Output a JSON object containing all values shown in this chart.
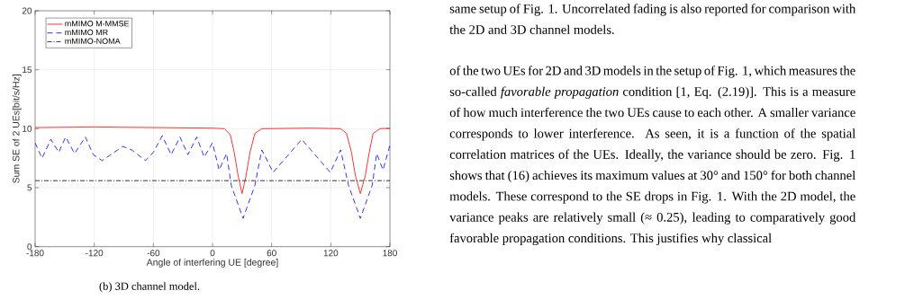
{
  "chart_data": {
    "type": "line",
    "xlabel": "Angle of interfering UE [degree]",
    "ylabel": "Sum SE of 2 UEs[bit/s/Hz]",
    "xlim": [
      -180,
      180
    ],
    "ylim": [
      0,
      20
    ],
    "xticks": [
      -180,
      -120,
      -60,
      0,
      60,
      120,
      180
    ],
    "yticks": [
      0,
      5,
      10,
      15,
      20
    ],
    "grid": true,
    "legend": "top left",
    "series": [
      {
        "name": "mMIMO M-MMSE",
        "color": "#ff0000",
        "line_style": "solid",
        "x": [
          -180,
          -120,
          0,
          12,
          18,
          22,
          26,
          30,
          34,
          38,
          43,
          50,
          100,
          130,
          136,
          141,
          145,
          150,
          155,
          159,
          163,
          170,
          180
        ],
        "values": [
          10.1,
          10.15,
          10.05,
          10.0,
          9.5,
          8,
          6,
          4.5,
          6,
          8,
          9.6,
          10.0,
          10.05,
          10.0,
          9.6,
          8,
          6,
          4.5,
          6,
          8,
          9.6,
          10.0,
          10.05
        ]
      },
      {
        "name": "mMIMO MR",
        "color": "#0000ff",
        "line_style": "dashed",
        "x": [
          -180,
          -173,
          -164,
          -156,
          -149,
          -140,
          -129,
          -121,
          -112,
          -91,
          -82,
          -68,
          -60,
          -51,
          -42,
          -33,
          -25,
          -16,
          -8.5,
          0,
          6.7,
          14.3,
          19,
          31,
          43,
          50,
          61.5,
          90.5,
          119.5,
          130,
          138,
          150,
          162,
          166.6,
          173,
          180
        ],
        "values": [
          8.8,
          7.5,
          9.1,
          8.0,
          9.3,
          7.9,
          9.3,
          7.8,
          7.3,
          8.5,
          8.2,
          7.3,
          8.0,
          9.4,
          7.8,
          9.3,
          7.8,
          9.3,
          7.6,
          8.8,
          6.5,
          7.9,
          5.2,
          2.4,
          5.2,
          8.2,
          6.3,
          9.1,
          6.3,
          8.2,
          5.2,
          2.4,
          5.2,
          7.9,
          6.5,
          8.6
        ]
      },
      {
        "name": "mMIMO-NOMA",
        "color": "#000000",
        "line_style": "dashdot",
        "x": [
          -180,
          180
        ],
        "values": [
          5.6,
          5.6
        ]
      }
    ],
    "annotations": [
      "(b) 3D channel model.",
      "same setup of Fig. 1. Uncorrelated fading is also reported for comparison with the 2D and 3D channel models.",
      "of the two UEs for 2D and 3D models in the setup of Fig. 1, which measures the so-called *favorable propagation* condition [1, Eq. (2.19)]. This is a measure of how much interference the two UEs cause to each other. A smaller variance corresponds to lower interference. As seen, it is a function of the spatial correlation matrices of the UEs. Ideally, the variance should be zero. Fig. 1 shows that (16) achieves its maximum values at 30° and 150° for both channel models. These correspond to the SE drops in Fig. 1. With the 2D model, the variance peaks are relatively small (≈ 0.25), leading to comparatively good favorable propagation conditions. This justifies why classical"
    ]
  }
}
